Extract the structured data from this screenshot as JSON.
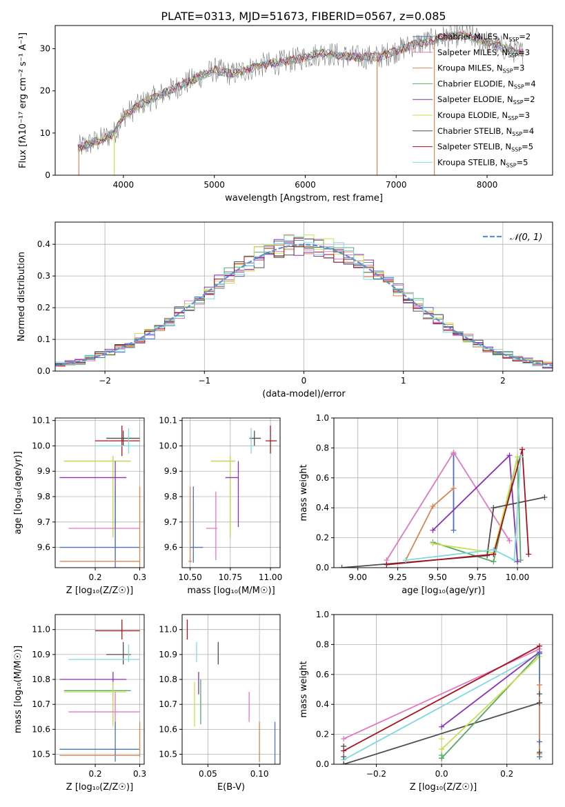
{
  "figure_title": "PLATE=0313, MJD=51673, FIBERID=0567, z=0.085",
  "colors": {
    "chabrier_miles": "#4c72b0",
    "salpeter_miles": "#e377c2",
    "kroupa_miles": "#dd8452",
    "chabrier_elodie": "#55a868",
    "salpeter_elodie": "#8c2fb8",
    "kroupa_elodie": "#c8e050",
    "chabrier_stelib": "#4d4d4d",
    "salpeter_stelib": "#a8121e",
    "kroupa_stelib": "#7fd9de",
    "normal_curve": "#5b8fd6"
  },
  "chart_data": [
    {
      "id": "spectrum",
      "type": "line",
      "xlabel": "wavelength [Angstrom, rest frame]",
      "ylabel": "Flux [fλ10⁻¹⁷ erg cm⁻² s⁻¹ A⁻¹]",
      "xlim": [
        3250,
        8720
      ],
      "ylim": [
        0,
        35.5
      ],
      "xticks": [
        4000,
        5000,
        6000,
        7000,
        8000
      ],
      "yticks": [
        0,
        10,
        20,
        30
      ],
      "grid": false,
      "legend_position": "right",
      "continuum": {
        "x": [
          3500,
          3700,
          3900,
          4000,
          4200,
          4500,
          4800,
          5000,
          5200,
          5500,
          5800,
          6000,
          6200,
          6500,
          6800,
          7000,
          7200,
          7400,
          7600,
          7800,
          8000,
          8200,
          8400
        ],
        "y": [
          6.5,
          8,
          10,
          14,
          17,
          20,
          23,
          25,
          24,
          26,
          27,
          28,
          29,
          28,
          28,
          29.5,
          31,
          32,
          33,
          33,
          31.5,
          30,
          29
        ]
      },
      "series": [
        {
          "name": "Chabrier MILES, N_SSP=2",
          "label": "Chabrier MILES, N",
          "sub": "SSP",
          "suffix": "=2",
          "color": "#4c72b0"
        },
        {
          "name": "Salpeter MILES, N_SSP=3",
          "label": "Salpeter MILES, N",
          "sub": "SSP",
          "suffix": "=3",
          "color": "#e377c2"
        },
        {
          "name": "Kroupa MILES, N_SSP=3",
          "label": "Kroupa MILES, N",
          "sub": "SSP",
          "suffix": "=3",
          "color": "#dd8452"
        },
        {
          "name": "Chabrier ELODIE, N_SSP=4",
          "label": "Chabrier ELODIE, N",
          "sub": "SSP",
          "suffix": "=4",
          "color": "#55a868"
        },
        {
          "name": "Salpeter ELODIE, N_SSP=2",
          "label": "Salpeter ELODIE, N",
          "sub": "SSP",
          "suffix": "=2",
          "color": "#8c2fb8"
        },
        {
          "name": "Kroupa ELODIE, N_SSP=3",
          "label": "Kroupa ELODIE, N",
          "sub": "SSP",
          "suffix": "=3",
          "color": "#c8e050"
        },
        {
          "name": "Chabrier STELIB, N_SSP=4",
          "label": "Chabrier STELIB, N",
          "sub": "SSP",
          "suffix": "=4",
          "color": "#4d4d4d"
        },
        {
          "name": "Salpeter STELIB, N_SSP=5",
          "label": "Salpeter STELIB, N",
          "sub": "SSP",
          "suffix": "=5",
          "color": "#a8121e"
        },
        {
          "name": "Kroupa STELIB, N_SSP=5",
          "label": "Kroupa STELIB, N",
          "sub": "SSP",
          "suffix": "=5",
          "color": "#7fd9de"
        }
      ],
      "model_drops": [
        {
          "x": 3510,
          "color": "#dd8452"
        },
        {
          "x": 3900,
          "color": "#c8e050"
        },
        {
          "x": 6790,
          "color": "#dd8452"
        },
        {
          "x": 7420,
          "color": "#dd8452"
        }
      ]
    },
    {
      "id": "residuals",
      "type": "bar",
      "xlabel": "(data-model)/error",
      "ylabel": "Normed distribution",
      "xlim": [
        -2.5,
        2.5
      ],
      "ylim": [
        0,
        0.47
      ],
      "xticks": [
        -2,
        -1,
        0,
        1,
        2
      ],
      "yticks": [
        0.0,
        0.1,
        0.2,
        0.3,
        0.4
      ],
      "grid": true,
      "legend_position": "top-right",
      "legend_label": "𝒩(0, 1)",
      "bin_width": 0.1
    },
    {
      "id": "age_vs_z",
      "type": "scatter",
      "xlabel": "Z [log₁₀(Z/Z☉)]",
      "ylabel": "age  [log₁₀(age/yr)]",
      "xlim": [
        0.11,
        0.31
      ],
      "ylim": [
        9.52,
        10.11
      ],
      "xticks": [
        0.2,
        0.3
      ],
      "yticks": [
        9.6,
        9.7,
        9.8,
        9.9,
        10.0,
        10.1
      ],
      "grid": true,
      "points": [
        {
          "color": "#a8121e",
          "x": 0.26,
          "xerr": [
            0.2,
            0.3
          ],
          "y": 10.02,
          "yerr": [
            9.96,
            10.08
          ]
        },
        {
          "color": "#4d4d4d",
          "x": 0.263,
          "xerr": [
            0.225,
            0.3
          ],
          "y": 10.03,
          "yerr": [
            10.0,
            10.06
          ]
        },
        {
          "color": "#7fd9de",
          "x": 0.275,
          "xerr": [
            0.2,
            0.3
          ],
          "y": 10.0,
          "yerr": [
            9.97,
            10.07
          ]
        },
        {
          "color": "#55a868",
          "x": 0.24,
          "xerr": [
            0.13,
            0.28
          ],
          "y": 9.94,
          "yerr": [
            9.64,
            9.96
          ]
        },
        {
          "color": "#c8e050",
          "x": 0.24,
          "xerr": [
            0.13,
            0.28
          ],
          "y": 9.94,
          "yerr": [
            9.64,
            9.96
          ]
        },
        {
          "color": "#8c2fb8",
          "x": 0.245,
          "xerr": [
            0.12,
            0.27
          ],
          "y": 9.875,
          "yerr": [
            9.67,
            9.94
          ]
        },
        {
          "color": "#e377c2",
          "x": 0.245,
          "xerr": [
            0.14,
            0.3
          ],
          "y": 9.675,
          "yerr": [
            9.55,
            9.84
          ]
        },
        {
          "color": "#4c72b0",
          "x": 0.245,
          "xerr": [
            0.12,
            0.3
          ],
          "y": 9.6,
          "yerr": [
            9.52,
            9.84
          ]
        },
        {
          "color": "#dd8452",
          "x": 0.3,
          "xerr": [
            0.12,
            0.3
          ],
          "y": 9.545,
          "yerr": [
            9.52,
            9.84
          ]
        }
      ]
    },
    {
      "id": "age_vs_mass",
      "type": "scatter",
      "xlabel": "mass [log₁₀(M/M☉)]",
      "ylabel": "",
      "xlim": [
        10.45,
        11.06
      ],
      "ylim": [
        9.52,
        10.11
      ],
      "xticks": [
        10.5,
        10.75,
        11.0
      ],
      "yticks": [
        9.6,
        9.7,
        9.8,
        9.9,
        10.0,
        10.1
      ],
      "grid": true,
      "points": [
        {
          "color": "#a8121e",
          "x": 11.0,
          "xerr": [
            10.97,
            11.04
          ],
          "y": 10.02,
          "yerr": [
            9.97,
            10.08
          ]
        },
        {
          "color": "#4d4d4d",
          "x": 10.9,
          "xerr": [
            10.87,
            10.94
          ],
          "y": 10.03,
          "yerr": [
            10.0,
            10.06
          ]
        },
        {
          "color": "#7fd9de",
          "x": 10.88,
          "xerr": [
            10.87,
            10.9
          ],
          "y": 10.0,
          "yerr": [
            9.97,
            10.07
          ]
        },
        {
          "color": "#55a868",
          "x": 10.75,
          "xerr": [
            10.63,
            10.78
          ],
          "y": 9.94,
          "yerr": [
            9.64,
            9.96
          ]
        },
        {
          "color": "#c8e050",
          "x": 10.75,
          "xerr": [
            10.63,
            10.78
          ],
          "y": 9.94,
          "yerr": [
            9.64,
            9.96
          ]
        },
        {
          "color": "#8c2fb8",
          "x": 10.8,
          "xerr": [
            10.72,
            10.8
          ],
          "y": 9.875,
          "yerr": [
            9.68,
            9.94
          ]
        },
        {
          "color": "#e377c2",
          "x": 10.66,
          "xerr": [
            10.6,
            10.67
          ],
          "y": 9.675,
          "yerr": [
            9.55,
            9.82
          ]
        },
        {
          "color": "#4c72b0",
          "x": 10.52,
          "xerr": [
            10.5,
            10.58
          ],
          "y": 9.6,
          "yerr": [
            9.54,
            9.84
          ]
        },
        {
          "color": "#dd8452",
          "x": 10.5,
          "xerr": [
            10.49,
            10.51
          ],
          "y": 9.545,
          "yerr": [
            9.54,
            9.84
          ]
        }
      ]
    },
    {
      "id": "mass_weight_vs_age",
      "type": "line",
      "xlabel": "age  [log₁₀(age/yr)]",
      "ylabel": "mass weight",
      "xlim": [
        8.85,
        10.22
      ],
      "ylim": [
        0,
        1.0
      ],
      "xticks": [
        9.0,
        9.25,
        9.5,
        9.75,
        10.0
      ],
      "yticks": [
        0.0,
        0.2,
        0.4,
        0.6,
        0.8,
        1.0
      ],
      "grid": true,
      "series": [
        {
          "color": "#4c72b0",
          "x": [
            9.6,
            9.6
          ],
          "y": [
            0.76,
            0.25
          ]
        },
        {
          "color": "#e377c2",
          "x": [
            9.18,
            9.6,
            9.95
          ],
          "y": [
            0.05,
            0.77,
            0.18
          ]
        },
        {
          "color": "#dd8452",
          "x": [
            9.3,
            9.47,
            9.6
          ],
          "y": [
            0.05,
            0.41,
            0.53
          ]
        },
        {
          "color": "#55a868",
          "x": [
            9.47,
            9.85,
            10.0,
            10.02
          ],
          "y": [
            0.17,
            0.04,
            0.74,
            0.05
          ]
        },
        {
          "color": "#8c2fb8",
          "x": [
            9.47,
            9.95,
            10.0
          ],
          "y": [
            0.25,
            0.75,
            0.04
          ]
        },
        {
          "color": "#c8e050",
          "x": [
            9.47,
            9.85,
            10.0
          ],
          "y": [
            0.16,
            0.1,
            0.74
          ]
        },
        {
          "color": "#4d4d4d",
          "x": [
            8.9,
            9.81,
            9.85,
            10.17
          ],
          "y": [
            0.0,
            0.08,
            0.4,
            0.47
          ]
        },
        {
          "color": "#a8121e",
          "x": [
            9.18,
            9.85,
            10.03,
            10.07
          ],
          "y": [
            0.02,
            0.09,
            0.79,
            0.09
          ]
        },
        {
          "color": "#7fd9de",
          "x": [
            9.3,
            9.85,
            9.98,
            10.02
          ],
          "y": [
            0.05,
            0.12,
            0.05,
            0.74
          ]
        }
      ]
    },
    {
      "id": "mass_vs_z",
      "type": "scatter",
      "xlabel": "Z [log₁₀(Z/Z☉)]",
      "ylabel": "mass [log₁₀(M/M☉)]",
      "xlim": [
        0.11,
        0.31
      ],
      "ylim": [
        10.46,
        11.06
      ],
      "xticks": [
        0.2,
        0.3
      ],
      "yticks": [
        10.5,
        10.6,
        10.7,
        10.8,
        10.9,
        11.0
      ],
      "grid": true,
      "points": [
        {
          "color": "#a8121e",
          "x": 0.26,
          "xerr": [
            0.2,
            0.3
          ],
          "y": 10.995,
          "yerr": [
            10.96,
            11.04
          ]
        },
        {
          "color": "#4d4d4d",
          "x": 0.263,
          "xerr": [
            0.225,
            0.28
          ],
          "y": 10.9,
          "yerr": [
            10.86,
            10.95
          ]
        },
        {
          "color": "#7fd9de",
          "x": 0.275,
          "xerr": [
            0.14,
            0.3
          ],
          "y": 10.88,
          "yerr": [
            10.87,
            10.94
          ]
        },
        {
          "color": "#8c2fb8",
          "x": 0.24,
          "xerr": [
            0.12,
            0.27
          ],
          "y": 10.8,
          "yerr": [
            10.72,
            10.83
          ]
        },
        {
          "color": "#55a868",
          "x": 0.24,
          "xerr": [
            0.13,
            0.28
          ],
          "y": 10.755,
          "yerr": [
            10.62,
            10.79
          ]
        },
        {
          "color": "#c8e050",
          "x": 0.24,
          "xerr": [
            0.13,
            0.27
          ],
          "y": 10.75,
          "yerr": [
            10.61,
            10.79
          ]
        },
        {
          "color": "#e377c2",
          "x": 0.245,
          "xerr": [
            0.14,
            0.3
          ],
          "y": 10.67,
          "yerr": [
            10.6,
            10.75
          ]
        },
        {
          "color": "#4c72b0",
          "x": 0.245,
          "xerr": [
            0.12,
            0.3
          ],
          "y": 10.52,
          "yerr": [
            10.47,
            10.63
          ]
        },
        {
          "color": "#dd8452",
          "x": 0.3,
          "xerr": [
            0.12,
            0.3
          ],
          "y": 10.495,
          "yerr": [
            10.49,
            10.63
          ]
        }
      ]
    },
    {
      "id": "mass_vs_ebv",
      "type": "scatter",
      "xlabel": "E(B-V)",
      "ylabel": "",
      "xlim": [
        0.025,
        0.12
      ],
      "ylim": [
        10.46,
        11.06
      ],
      "xticks": [
        0.05,
        0.1
      ],
      "yticks": [
        10.5,
        10.6,
        10.7,
        10.8,
        10.9,
        11.0
      ],
      "grid": true,
      "points": [
        {
          "color": "#a8121e",
          "x": 0.03,
          "y": 11.0,
          "yerr": [
            10.96,
            11.04
          ]
        },
        {
          "color": "#4d4d4d",
          "x": 0.06,
          "y": 10.9,
          "yerr": [
            10.86,
            10.95
          ]
        },
        {
          "color": "#7fd9de",
          "x": 0.039,
          "y": 10.9,
          "yerr": [
            10.87,
            10.95
          ]
        },
        {
          "color": "#8c2fb8",
          "x": 0.041,
          "y": 10.79,
          "yerr": [
            10.74,
            10.83
          ]
        },
        {
          "color": "#55a868",
          "x": 0.043,
          "y": 10.72,
          "yerr": [
            10.62,
            10.8
          ]
        },
        {
          "color": "#c8e050",
          "x": 0.037,
          "y": 10.7,
          "yerr": [
            10.61,
            10.79
          ]
        },
        {
          "color": "#e377c2",
          "x": 0.09,
          "y": 10.7,
          "yerr": [
            10.63,
            10.75
          ]
        },
        {
          "color": "#dd8452",
          "x": 0.1,
          "y": 10.55,
          "yerr": [
            10.47,
            10.63
          ]
        },
        {
          "color": "#4c72b0",
          "x": 0.115,
          "y": 10.55,
          "yerr": [
            10.46,
            10.63
          ]
        }
      ]
    },
    {
      "id": "mass_weight_vs_z",
      "type": "line",
      "xlabel": "Z [log₁₀(Z/Z☉)]",
      "ylabel": "mass weight",
      "xlim": [
        -0.33,
        0.34
      ],
      "ylim": [
        0,
        1.0
      ],
      "xticks": [
        -0.2,
        0.0,
        0.2
      ],
      "yticks": [
        0.0,
        0.2,
        0.4,
        0.6,
        0.8,
        1.0
      ],
      "grid": true,
      "series": [
        {
          "color": "#e377c2",
          "x": [
            -0.3,
            0.3
          ],
          "y": [
            0.17,
            0.77
          ]
        },
        {
          "color": "#a8121e",
          "x": [
            -0.3,
            0.3
          ],
          "y": [
            0.09,
            0.79
          ]
        },
        {
          "color": "#7fd9de",
          "x": [
            -0.3,
            0.3
          ],
          "y": [
            0.03,
            0.74
          ]
        },
        {
          "color": "#4d4d4d",
          "x": [
            -0.3,
            0.3
          ],
          "y": [
            0.0,
            0.41
          ]
        },
        {
          "color": "#8c2fb8",
          "x": [
            0.0,
            0.3
          ],
          "y": [
            0.25,
            0.75
          ]
        },
        {
          "color": "#55a868",
          "x": [
            0.0,
            0.3
          ],
          "y": [
            0.04,
            0.74
          ]
        },
        {
          "color": "#c8e050",
          "x": [
            0.0,
            0.3
          ],
          "y": [
            0.1,
            0.72
          ]
        },
        {
          "color": "#4c72b0",
          "x": [
            0.3,
            0.3
          ],
          "y": [
            0.05,
            0.74
          ]
        },
        {
          "color": "#dd8452",
          "x": [
            0.3,
            0.3
          ],
          "y": [
            0.07,
            0.53
          ]
        }
      ],
      "markers": [
        {
          "color": "#4d4d4d",
          "x": -0.3,
          "y": [
            0.0,
            0.05,
            0.12
          ]
        },
        {
          "color": "#c8e050",
          "x": 0.0,
          "y": [
            0.17,
            0.1,
            0.06
          ]
        },
        {
          "color": "#55a868",
          "x": 0.0,
          "y": [
            0.04,
            0.06
          ]
        },
        {
          "color": "#4c72b0",
          "x": 0.3,
          "y": [
            0.74,
            0.15,
            0.05
          ]
        },
        {
          "color": "#dd8452",
          "x": 0.3,
          "y": [
            0.53,
            0.41,
            0.07
          ]
        },
        {
          "color": "#4d4d4d",
          "x": 0.3,
          "y": [
            0.47,
            0.41,
            0.08
          ]
        }
      ]
    }
  ]
}
